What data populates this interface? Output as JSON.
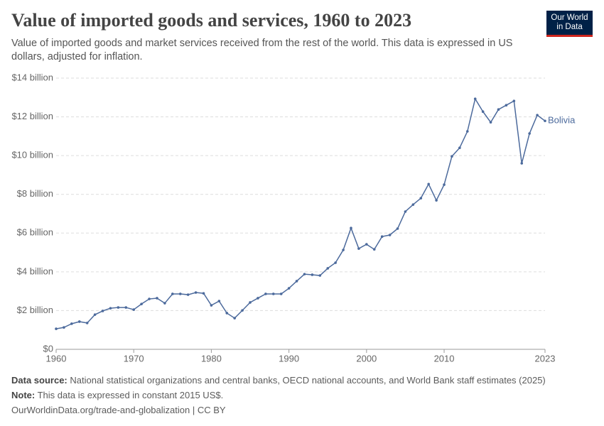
{
  "chart_data": {
    "type": "line",
    "title": "Value of imported goods and services, 1960 to 2023",
    "subtitle": "Value of imported goods and market services received from the rest of the world. This data is expressed in US dollars, adjusted for inflation.",
    "logo": [
      "Our World",
      "in Data"
    ],
    "x": [
      1960,
      1961,
      1962,
      1963,
      1964,
      1965,
      1966,
      1967,
      1968,
      1969,
      1970,
      1971,
      1972,
      1973,
      1974,
      1975,
      1976,
      1977,
      1978,
      1979,
      1980,
      1981,
      1982,
      1983,
      1984,
      1985,
      1986,
      1987,
      1988,
      1989,
      1990,
      1991,
      1992,
      1993,
      1994,
      1995,
      1996,
      1997,
      1998,
      1999,
      2000,
      2001,
      2002,
      2003,
      2004,
      2005,
      2006,
      2007,
      2008,
      2009,
      2010,
      2011,
      2012,
      2013,
      2014,
      2015,
      2016,
      2017,
      2018,
      2019,
      2020,
      2021,
      2022,
      2023
    ],
    "series": [
      {
        "name": "Bolivia",
        "color": "#4c6a9c",
        "values": [
          1.06,
          1.13,
          1.32,
          1.43,
          1.36,
          1.79,
          1.98,
          2.12,
          2.16,
          2.16,
          2.05,
          2.34,
          2.6,
          2.64,
          2.38,
          2.86,
          2.86,
          2.82,
          2.93,
          2.89,
          2.27,
          2.49,
          1.87,
          1.61,
          2.01,
          2.42,
          2.64,
          2.86,
          2.86,
          2.86,
          3.15,
          3.52,
          3.88,
          3.85,
          3.81,
          4.18,
          4.47,
          5.13,
          6.26,
          5.2,
          5.42,
          5.16,
          5.82,
          5.9,
          6.23,
          7.11,
          7.47,
          7.8,
          8.53,
          7.69,
          8.5,
          9.96,
          10.4,
          11.25,
          12.93,
          12.27,
          11.72,
          12.38,
          12.6,
          12.82,
          9.6,
          11.14,
          12.09,
          11.79
        ]
      }
    ],
    "xlim": [
      1960,
      2023
    ],
    "xticks": [
      1960,
      1970,
      1980,
      1990,
      2000,
      2010,
      2023
    ],
    "ylim": [
      0,
      14
    ],
    "yticks": [
      {
        "value": 0,
        "label": "$0"
      },
      {
        "value": 2,
        "label": "$2 billion"
      },
      {
        "value": 4,
        "label": "$4 billion"
      },
      {
        "value": 6,
        "label": "$6 billion"
      },
      {
        "value": 8,
        "label": "$8 billion"
      },
      {
        "value": 10,
        "label": "$10 billion"
      },
      {
        "value": 12,
        "label": "$12 billion"
      },
      {
        "value": 14,
        "label": "$14 billion"
      }
    ],
    "grid": true,
    "source_label": "Data source:",
    "source": "National statistical organizations and central banks, OECD national accounts, and World Bank staff estimates (2025)",
    "note_label": "Note:",
    "note": "This data is expressed in constant 2015 US$.",
    "url": "OurWorldinData.org/trade-and-globalization | CC BY"
  }
}
